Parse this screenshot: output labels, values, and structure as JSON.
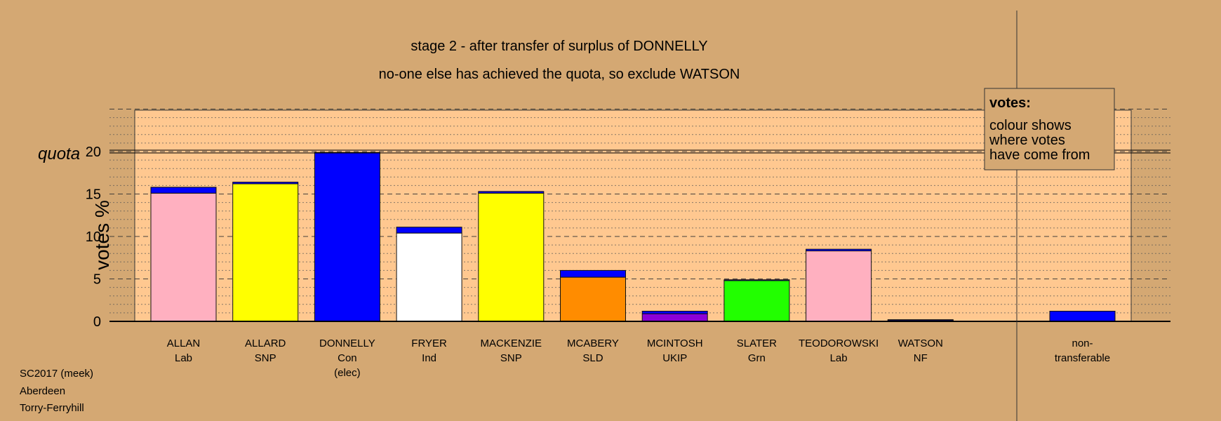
{
  "chart_data": {
    "type": "bar",
    "title": "stage 2 - after transfer of surplus of DONNELLY",
    "subtitle": "no-one else has achieved the quota, so exclude WATSON",
    "ylabel": "votes %",
    "quota_label": "quota",
    "quota": 20,
    "ylim": [
      0,
      25
    ],
    "yticks": [
      0,
      5,
      10,
      15,
      20
    ],
    "categories": [
      {
        "name": "ALLAN",
        "party": "Lab",
        "note": ""
      },
      {
        "name": "ALLARD",
        "party": "SNP",
        "note": ""
      },
      {
        "name": "DONNELLY",
        "party": "Con",
        "note": "(elec)"
      },
      {
        "name": "FRYER",
        "party": "Ind",
        "note": ""
      },
      {
        "name": "MACKENZIE",
        "party": "SNP",
        "note": ""
      },
      {
        "name": "MCABERY",
        "party": "SLD",
        "note": ""
      },
      {
        "name": "MCINTOSH",
        "party": "UKIP",
        "note": ""
      },
      {
        "name": "SLATER",
        "party": "Grn",
        "note": ""
      },
      {
        "name": "TEODOROWSKI",
        "party": "Lab",
        "note": ""
      },
      {
        "name": "WATSON",
        "party": "NF",
        "note": ""
      }
    ],
    "series": [
      {
        "source": "own first preferences",
        "values": [
          15.1,
          16.2,
          19.9,
          10.4,
          15.1,
          5.2,
          0.9,
          4.8,
          8.3,
          0.1
        ]
      },
      {
        "source": "transfer from DONNELLY",
        "values": [
          0.7,
          0.2,
          0.0,
          0.7,
          0.2,
          0.8,
          0.3,
          0.1,
          0.2,
          0.1
        ]
      }
    ],
    "segment_colors": [
      [
        "#ffb0c0",
        "#0000ff"
      ],
      [
        "#ffff00",
        "#0000ff"
      ],
      [
        "#0000ff",
        "#0000ff"
      ],
      [
        "#ffffff",
        "#0000ff"
      ],
      [
        "#ffff00",
        "#0000ff"
      ],
      [
        "#ff8c00",
        "#0000ff"
      ],
      [
        "#8b00d8",
        "#0000ff"
      ],
      [
        "#22ff00",
        "#0000ff"
      ],
      [
        "#ffb0c0",
        "#0000ff"
      ],
      [
        "#8b00d8",
        "#0000ff"
      ]
    ],
    "nontransferable": {
      "label_line1": "non-",
      "label_line2": "transferable",
      "value": 1.2,
      "color": "#0000ff"
    },
    "legend": {
      "title": "votes:",
      "lines": [
        "colour shows",
        "where votes",
        "have come from"
      ],
      "position": "top-right"
    },
    "grid": true
  },
  "footer": {
    "line1": "SC2017 (meek)",
    "line2": "Aberdeen",
    "line3": "Torry-Ferryhill"
  },
  "colors": {
    "background": "#d4a873",
    "plot_area": "#ffc890",
    "axis": "#000000"
  }
}
